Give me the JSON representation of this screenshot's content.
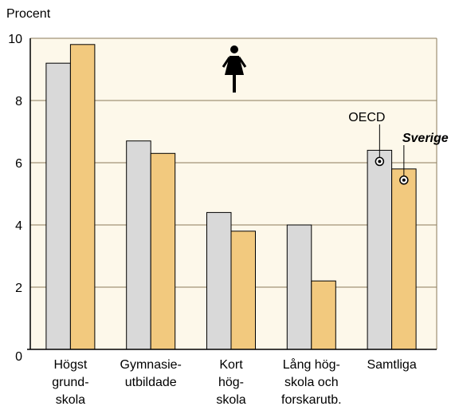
{
  "chart_data": {
    "type": "bar",
    "y_axis_label": "Procent",
    "categories": [
      [
        "Högst",
        "grund-",
        "skola"
      ],
      [
        "Gymnasie-",
        "utbildade"
      ],
      [
        "Kort",
        "hög-",
        "skola"
      ],
      [
        "Lång hög-",
        "skola och",
        "forskarutb."
      ],
      [
        "Samtliga"
      ]
    ],
    "series": [
      {
        "name": "OECD",
        "color": "#d9d9d9",
        "values": [
          9.2,
          6.7,
          4.4,
          4.0,
          6.4
        ]
      },
      {
        "name": "Sverige",
        "color": "#f2c97e",
        "values": [
          9.8,
          6.3,
          3.8,
          2.2,
          5.8
        ]
      }
    ],
    "ylim": [
      0,
      10
    ],
    "yticks": [
      0,
      2,
      4,
      6,
      8,
      10
    ],
    "grid": true
  }
}
